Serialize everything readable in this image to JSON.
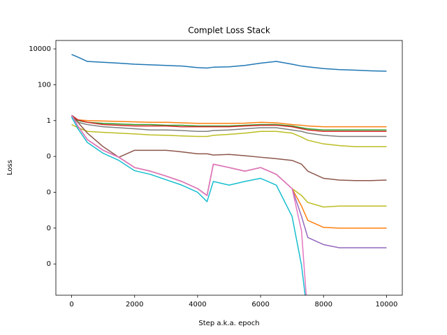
{
  "chart_data": {
    "type": "line",
    "title": "Complet Loss Stack",
    "x_label": "Step a.k.a. epoch",
    "y_label": "Loss",
    "log_scale_y": true,
    "xlim": [
      -500,
      10500
    ],
    "xticks": [
      0,
      2000,
      4000,
      6000,
      8000,
      10000
    ],
    "ylim": [
      1.8e-10,
      29500
    ],
    "yticks": [
      {
        "value": 10000,
        "label": "10000"
      },
      {
        "value": 100,
        "label": "100"
      },
      {
        "value": 1,
        "label": "1"
      },
      {
        "value": 0.01,
        "label": "0"
      },
      {
        "value": 0.0001,
        "label": "0"
      },
      {
        "value": 1e-06,
        "label": "0"
      },
      {
        "value": 1e-08,
        "label": "0"
      }
    ],
    "x": [
      0,
      200,
      500,
      1000,
      1500,
      2000,
      2500,
      3000,
      3500,
      4000,
      4300,
      4500,
      5000,
      5500,
      6000,
      6500,
      7000,
      7300,
      7500,
      8000,
      8500,
      9000,
      9500,
      10000
    ],
    "series": [
      {
        "color": "#1f77b4",
        "values": [
          4900,
          3500,
          2000,
          1800,
          1600,
          1400,
          1300,
          1200,
          1100,
          900,
          850,
          950,
          1000,
          1200,
          1600,
          2000,
          1400,
          1100,
          1000,
          800,
          700,
          650,
          600,
          570
        ]
      },
      {
        "color": "#ff7f0e",
        "values": [
          1.5,
          1.1,
          1.0,
          0.95,
          0.9,
          0.85,
          0.8,
          0.8,
          0.75,
          0.7,
          0.7,
          0.7,
          0.7,
          0.72,
          0.8,
          0.75,
          0.6,
          0.55,
          0.5,
          0.45,
          0.45,
          0.45,
          0.45,
          0.45
        ]
      },
      {
        "color": "#2ca02c",
        "values": [
          2,
          1.0,
          0.8,
          0.7,
          0.65,
          0.6,
          0.6,
          0.55,
          0.55,
          0.5,
          0.5,
          0.5,
          0.5,
          0.55,
          0.6,
          0.6,
          0.5,
          0.4,
          0.35,
          0.3,
          0.3,
          0.3,
          0.3,
          0.3
        ]
      },
      {
        "color": "#d62728",
        "values": [
          2,
          1.1,
          0.8,
          0.6,
          0.55,
          0.5,
          0.5,
          0.5,
          0.45,
          0.45,
          0.45,
          0.45,
          0.45,
          0.5,
          0.55,
          0.55,
          0.45,
          0.35,
          0.3,
          0.25,
          0.25,
          0.25,
          0.25,
          0.25
        ]
      },
      {
        "color": "#7f7f7f",
        "values": [
          1.8,
          0.8,
          0.6,
          0.45,
          0.4,
          0.35,
          0.3,
          0.3,
          0.28,
          0.25,
          0.25,
          0.28,
          0.3,
          0.35,
          0.4,
          0.4,
          0.3,
          0.25,
          0.2,
          0.15,
          0.13,
          0.13,
          0.13,
          0.13
        ]
      },
      {
        "color": "#bcbd22",
        "values": [
          0.6,
          0.4,
          0.25,
          0.22,
          0.2,
          0.18,
          0.16,
          0.15,
          0.14,
          0.13,
          0.13,
          0.15,
          0.17,
          0.2,
          0.25,
          0.25,
          0.2,
          0.12,
          0.08,
          0.05,
          0.04,
          0.035,
          0.035,
          0.035
        ]
      },
      {
        "color": "#8c564b",
        "values": [
          2,
          0.8,
          0.2,
          0.035,
          0.009,
          0.022,
          0.022,
          0.022,
          0.018,
          0.014,
          0.014,
          0.012,
          0.013,
          0.011,
          0.009,
          0.0075,
          0.006,
          0.0037,
          0.0015,
          0.0006,
          0.00048,
          0.00045,
          0.00045,
          0.00048
        ]
      },
      {
        "color": "#bcbd22",
        "values": [
          2,
          0.5,
          0.087,
          0.022,
          0.009,
          0.0024,
          0.0015,
          0.0008,
          0.0004,
          0.00016,
          6.6e-05,
          0.0037,
          0.0024,
          0.0015,
          0.0024,
          0.001,
          0.00016,
          6.6e-05,
          2.7e-05,
          1.5e-05,
          1.7e-05,
          1.7e-05,
          1.7e-05,
          1.7e-05
        ]
      },
      {
        "color": "#ff7f0e",
        "values": [
          2,
          0.5,
          0.087,
          0.022,
          0.009,
          0.0024,
          0.0015,
          0.0008,
          0.0004,
          0.00016,
          6.6e-05,
          0.0037,
          0.0024,
          0.0015,
          0.0024,
          0.001,
          0.00016,
          1.7e-05,
          2.7e-06,
          1.1e-06,
          1e-06,
          1e-06,
          1e-06,
          1e-06
        ]
      },
      {
        "color": "#9467bd",
        "values": [
          2,
          0.5,
          0.087,
          0.022,
          0.009,
          0.0024,
          0.0015,
          0.0008,
          0.0004,
          0.00016,
          6.6e-05,
          0.0037,
          0.0024,
          0.0015,
          0.0024,
          0.001,
          0.00016,
          4.5e-06,
          3e-07,
          1.2e-07,
          8e-08,
          8e-08,
          8e-08,
          8e-08
        ]
      },
      {
        "color": "#e377c2",
        "values": [
          2,
          0.5,
          0.087,
          0.022,
          0.009,
          0.0024,
          0.0015,
          0.0008,
          0.0004,
          0.00016,
          6.6e-05,
          0.0037,
          0.0024,
          0.0015,
          0.0024,
          0.001,
          0.00016,
          7e-07,
          1e-11,
          null,
          null,
          null,
          null,
          null
        ]
      },
      {
        "color": "#17becf",
        "values": [
          1.6,
          0.35,
          0.06,
          0.015,
          0.006,
          0.0016,
          0.001,
          0.0005,
          0.00025,
          0.0001,
          3e-05,
          0.0004,
          0.00025,
          0.0004,
          0.0006,
          0.00025,
          4.5e-06,
          8.3e-09,
          1e-11,
          null,
          null,
          null,
          null,
          null
        ]
      }
    ]
  }
}
